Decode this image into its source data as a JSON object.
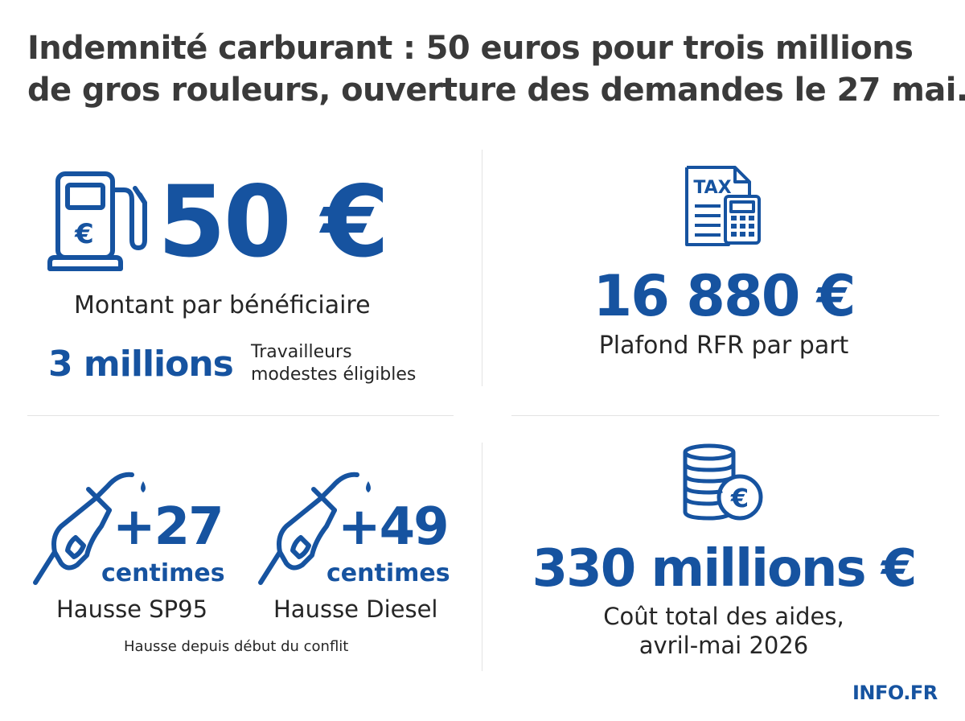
{
  "title": {
    "line1": "Indemnité carburant : 50 euros pour trois millions",
    "line2": "de gros rouleurs, ouverture des demandes le 27 mai."
  },
  "amount": {
    "value": "50 €",
    "label": "Montant par bénéficiaire",
    "icon": "fuel-pump-euro-icon"
  },
  "workers": {
    "value": "3 millions",
    "label_line1": "Travailleurs",
    "label_line2": "modestes éligibles"
  },
  "ceiling": {
    "value": "16 880 €",
    "label": "Plafond RFR par part",
    "icon": "tax-document-calculator-icon",
    "icon_text": "TAX"
  },
  "sp95": {
    "value": "+27",
    "unit": "centimes",
    "label": "Hausse SP95",
    "icon": "fuel-nozzle-icon"
  },
  "diesel": {
    "value": "+49",
    "unit": "centimes",
    "label": "Hausse Diesel",
    "icon": "fuel-nozzle-icon"
  },
  "increase_note": "Hausse depuis début du conflit",
  "cost": {
    "value": "330 millions €",
    "label_line1": "Coût total des aides,",
    "label_line2": "avril-mai 2026",
    "icon": "coin-stack-euro-icon"
  },
  "source": "INFO.FR",
  "colors": {
    "accent": "#1653a0",
    "text": "#262626",
    "title": "#3a3a3a",
    "divider": "#e3e3e3"
  }
}
